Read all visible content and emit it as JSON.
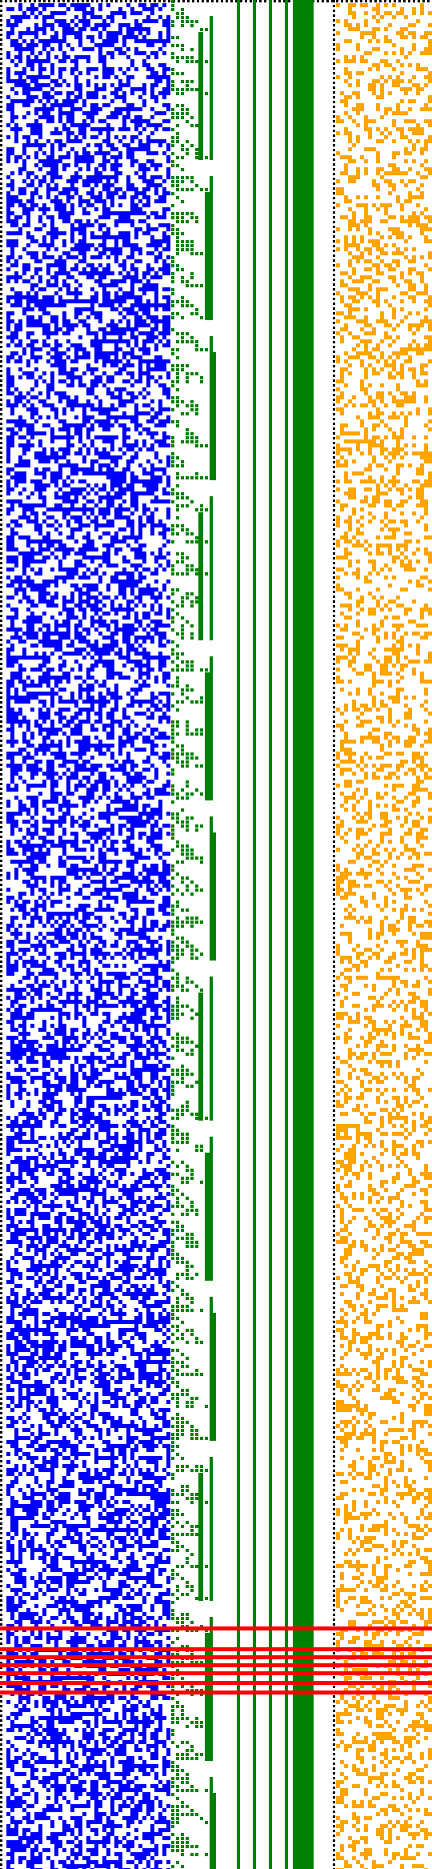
{
  "title": "",
  "colors": {
    "background": "#ffffff",
    "bits": "#0000ff",
    "tree": "#008000",
    "flags": "#ffa500",
    "markers": "#ff0000",
    "border": "#000000"
  },
  "panels": [
    {
      "name": "bit-field",
      "color_key": "bits",
      "density": 0.5
    },
    {
      "name": "branch-tree",
      "color_key": "tree"
    },
    {
      "name": "flag-field",
      "color_key": "flags",
      "density": 0.33
    }
  ],
  "markers": {
    "count": 7
  }
}
